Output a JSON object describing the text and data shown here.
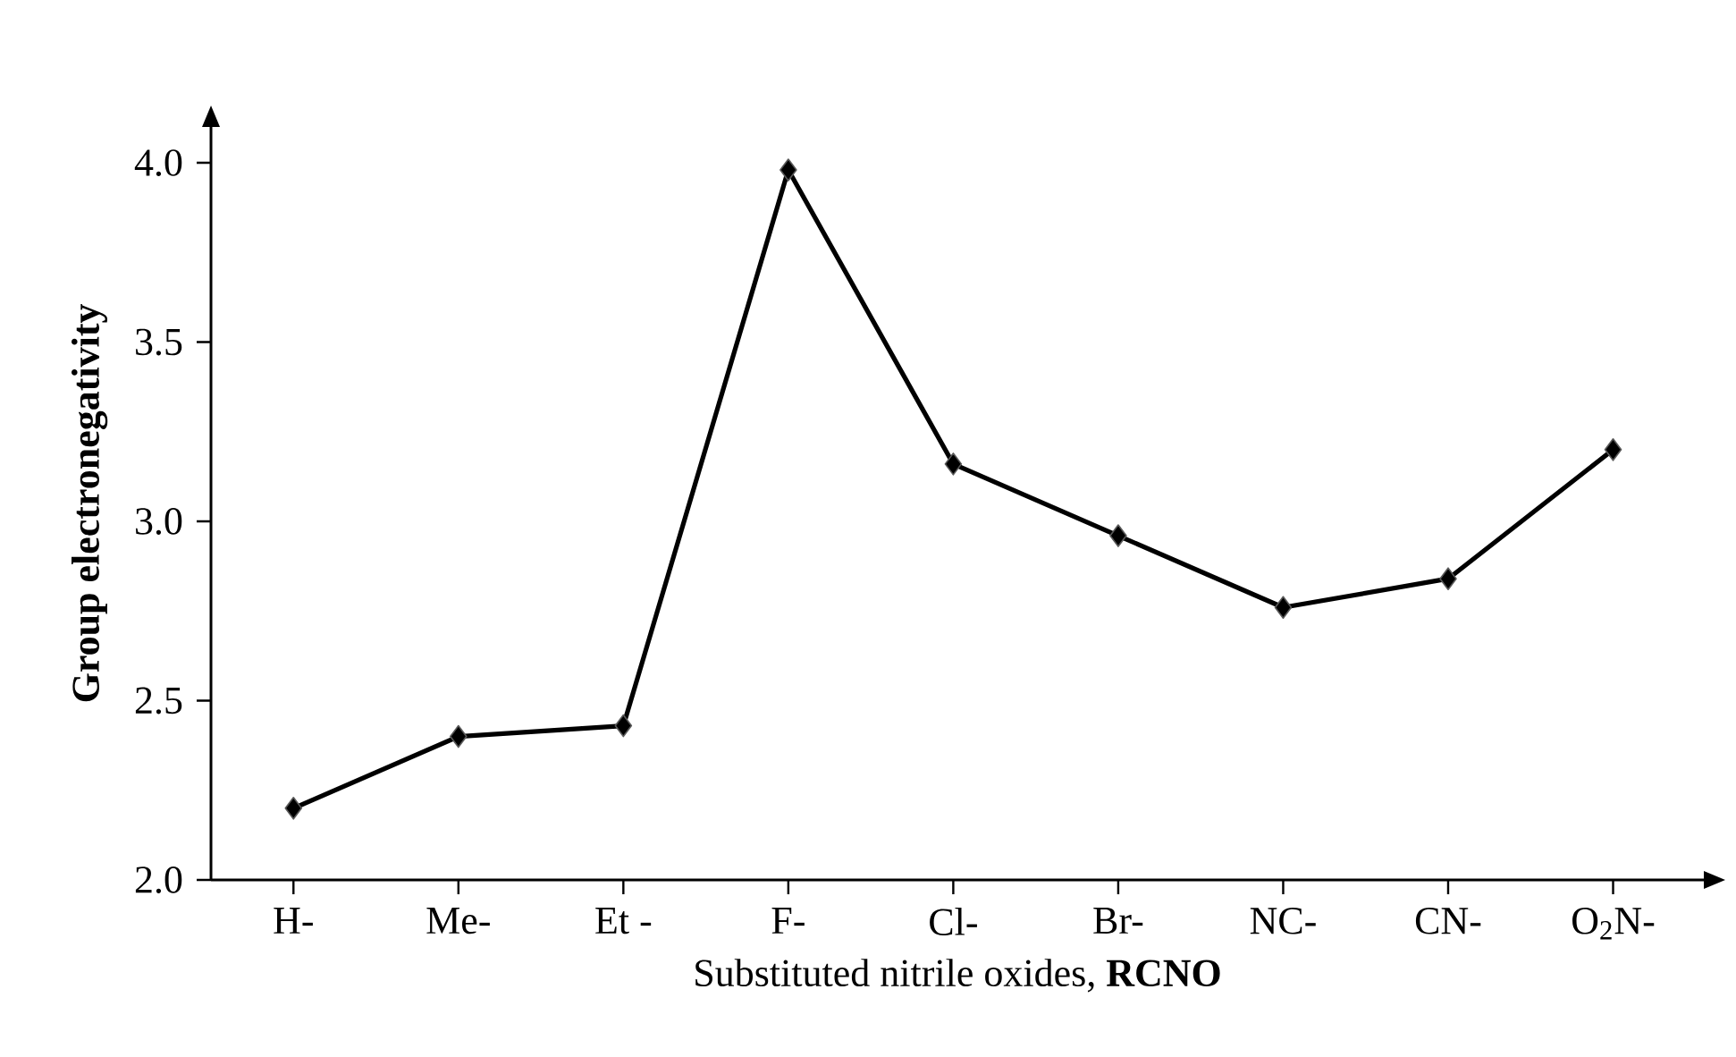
{
  "chart_data": {
    "type": "line",
    "xlabel": "Substituted nitrile oxides, **RCNO**",
    "ylabel": "Group electronegativity",
    "categories": [
      "H-",
      "Me-",
      "Et -",
      "F-",
      "Cl-",
      "Br-",
      "NC-",
      "CN-",
      "O$_{2}$N-"
    ],
    "series": [
      {
        "color": "#000000",
        "values": [
          2.2,
          2.4,
          2.43,
          3.98,
          3.16,
          2.96,
          2.76,
          2.84,
          3.2
        ]
      }
    ],
    "ylim": [
      2.0,
      4.1
    ],
    "yticks": [
      {
        "value": 2.0,
        "label": "2.0"
      },
      {
        "value": 2.5,
        "label": "2.5"
      },
      {
        "value": 3.0,
        "label": "3.0"
      },
      {
        "value": 3.5,
        "label": "3.5"
      },
      {
        "value": 4.0,
        "label": "4.0"
      }
    ],
    "marker": "diamond",
    "line_style": "solid"
  }
}
